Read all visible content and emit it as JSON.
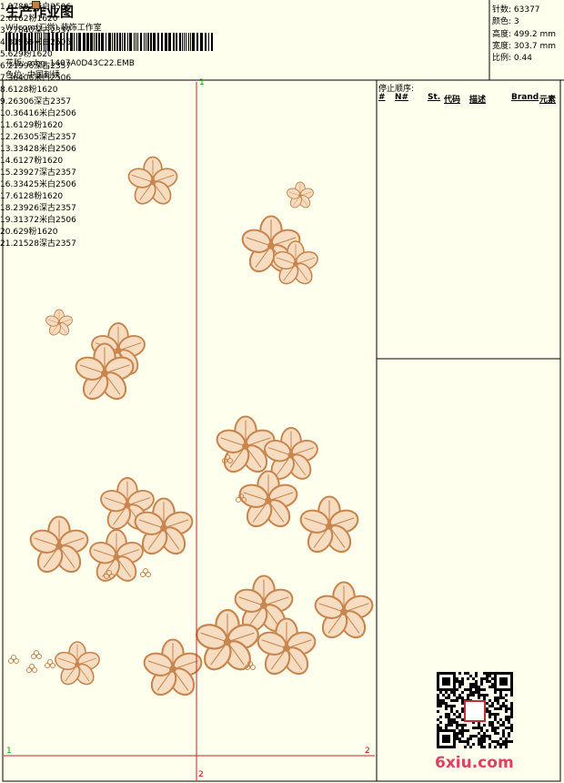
{
  "header": {
    "title": "生产作业图",
    "studio": "Wilcom(汇觉) 装饰工作室",
    "design_file": "花版: mbg_1407A0D43C22.EMB",
    "colorway": "色位: 中国刺绣"
  },
  "stats": [
    "针数: 63377",
    "颜色: 3",
    "高度: 499.2 mm",
    "宽度: 303.7 mm",
    "比例: 0.44"
  ],
  "stop_sequence": {
    "title": "停止顺序:",
    "columns": [
      "#",
      "N#",
      "St.",
      "代码",
      "描述",
      "Brand",
      "元素"
    ],
    "rows": [
      {
        "index": "1.",
        "needle": 3,
        "color": "#ffffff",
        "stitches": 7802,
        "description": "米白2506"
      },
      {
        "index": "2.",
        "needle": 6,
        "color": "#e87aa8",
        "stitches": 162,
        "description": "粉1620"
      },
      {
        "index": "3.",
        "needle": 2,
        "color": "#c0804a",
        "stitches": 7840,
        "description": "深古2357"
      },
      {
        "index": "4.",
        "needle": 3,
        "color": "#ffffff",
        "stitches": 1966,
        "description": "米白2506"
      },
      {
        "index": "5.",
        "needle": 6,
        "color": "#e87aa8",
        "stitches": 29,
        "description": "粉1620"
      },
      {
        "index": "6.",
        "needle": 2,
        "color": "#c0804a",
        "stitches": 1996,
        "description": "深古2357"
      },
      {
        "index": "7.",
        "needle": 3,
        "color": "#ffffff",
        "stitches": 6406,
        "description": "米白2506"
      },
      {
        "index": "8.",
        "needle": 6,
        "color": "#e87aa8",
        "stitches": 128,
        "description": "粉1620"
      },
      {
        "index": "9.",
        "needle": 2,
        "color": "#c0804a",
        "stitches": 6306,
        "description": "深古2357"
      },
      {
        "index": "10.",
        "needle": 3,
        "color": "#ffffff",
        "stitches": 6416,
        "description": "米白2506"
      },
      {
        "index": "11.",
        "needle": 6,
        "color": "#e87aa8",
        "stitches": 129,
        "description": "粉1620"
      },
      {
        "index": "12.",
        "needle": 2,
        "color": "#c0804a",
        "stitches": 6305,
        "description": "深古2357"
      },
      {
        "index": "13.",
        "needle": 3,
        "color": "#ffffff",
        "stitches": 3428,
        "description": "米白2506"
      },
      {
        "index": "14.",
        "needle": 6,
        "color": "#e87aa8",
        "stitches": 127,
        "description": "粉1620"
      },
      {
        "index": "15.",
        "needle": 2,
        "color": "#c0804a",
        "stitches": 3927,
        "description": "深古2357"
      },
      {
        "index": "16.",
        "needle": 3,
        "color": "#ffffff",
        "stitches": 3425,
        "description": "米白2506"
      },
      {
        "index": "17.",
        "needle": 6,
        "color": "#e87aa8",
        "stitches": 128,
        "description": "粉1620"
      },
      {
        "index": "18.",
        "needle": 2,
        "color": "#c0804a",
        "stitches": 3926,
        "description": "深古2357"
      },
      {
        "index": "19.",
        "needle": 3,
        "color": "#ffffff",
        "stitches": 1372,
        "description": "米白2506"
      },
      {
        "index": "20.",
        "needle": 6,
        "color": "#e87aa8",
        "stitches": 29,
        "description": "粉1620"
      },
      {
        "index": "21.",
        "needle": 2,
        "color": "#c0804a",
        "stitches": 1528,
        "description": "深古2357"
      }
    ]
  },
  "markers": {
    "top": "1",
    "left": "1",
    "right": "2",
    "bottom": "2"
  },
  "watermark": "6xiu.com"
}
